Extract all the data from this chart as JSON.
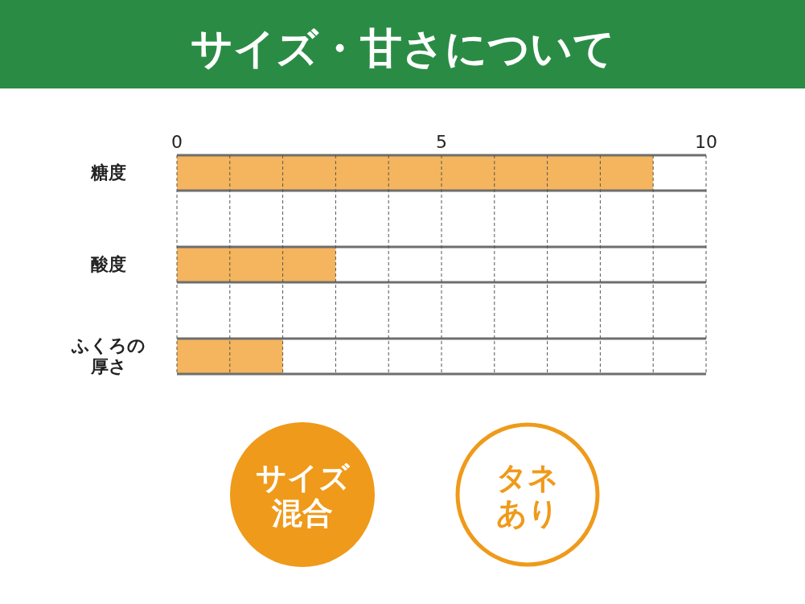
{
  "chart_data": {
    "type": "bar",
    "orientation": "horizontal",
    "title": "サイズ・甘さについて",
    "categories": [
      "糖度",
      "酸度",
      "ふくろの厚さ"
    ],
    "values": [
      9,
      3,
      2
    ],
    "color": "#f4b55e",
    "xlim": [
      0,
      10
    ],
    "xticks": [
      0,
      {
        "value": 1,
        "label": null
      },
      {
        "value": 2,
        "label": null
      },
      {
        "value": 3,
        "label": null
      },
      {
        "value": 4,
        "label": null
      },
      5,
      {
        "value": 6,
        "label": null
      },
      {
        "value": 7,
        "label": null
      },
      {
        "value": 8,
        "label": null
      },
      {
        "value": 9,
        "label": null
      },
      10
    ],
    "grid": "x",
    "annotations": [
      "サイズ混合",
      "タネあり"
    ]
  }
}
